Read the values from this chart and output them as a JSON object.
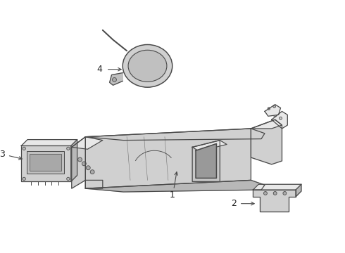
{
  "background_color": "#ffffff",
  "line_color": "#4a4a4a",
  "label_color": "#222222",
  "fill_light": "#e8e8e8",
  "fill_mid": "#d0d0d0",
  "fill_dark": "#b8b8b8"
}
